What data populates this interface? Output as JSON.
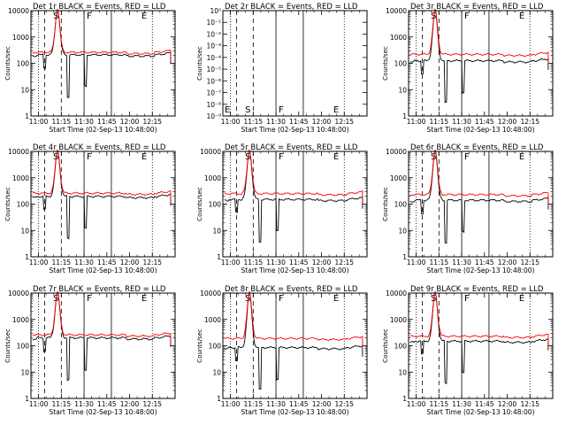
{
  "chart_data": {
    "type": "line",
    "xlabel": "Start Time (02-Sep-13 10:48:00)",
    "ylabel": "Counts/sec",
    "y_scale": "log",
    "x_tick_labels": [
      "11:00",
      "11:15",
      "11:30",
      "11:45",
      "12:00",
      "12:15"
    ],
    "x_range_min": [
      -5,
      90
    ],
    "y_tick_labels": [
      "1",
      "10",
      "100",
      "1000",
      "10000"
    ],
    "ylim": [
      1,
      10000
    ],
    "markers": [
      {
        "label": "S",
        "x_min": 12
      },
      {
        "label": "F",
        "x_min": 30
      },
      {
        "label": "E",
        "x_min": 66
      }
    ],
    "lines": {
      "solid_x_min": [
        30,
        48
      ],
      "dashed_x_min": [
        4,
        15
      ],
      "dotted_x_min": [
        0,
        75
      ]
    },
    "series_colors": {
      "events": "#000000",
      "lld": "#ff0000"
    },
    "panels": [
      {
        "title": "Det 1r  BLACK = Events, RED = LLD",
        "has_data": true,
        "events_level": 210,
        "lld_level": 260,
        "flare_peak": 11000
      },
      {
        "title": "Det 2r  BLACK = Events, RED = LLD",
        "has_data": false,
        "y_tick_labels": [
          "10⁻⁹",
          "10⁻⁸",
          "10⁻⁷",
          "10⁻⁶",
          "10⁻⁵",
          "10⁻⁴",
          "10⁻³",
          "10⁻²",
          "10⁻¹",
          "10⁰"
        ]
      },
      {
        "title": "Det 3r  BLACK = Events, RED = LLD",
        "has_data": true,
        "events_level": 125,
        "lld_level": 220,
        "flare_peak": 11000
      },
      {
        "title": "Det 4r  BLACK = Events, RED = LLD",
        "has_data": true,
        "events_level": 195,
        "lld_level": 260,
        "flare_peak": 11000
      },
      {
        "title": "Det 5r  BLACK = Events, RED = LLD",
        "has_data": true,
        "events_level": 150,
        "lld_level": 250,
        "flare_peak": 11000
      },
      {
        "title": "Det 6r  BLACK = Events, RED = LLD",
        "has_data": true,
        "events_level": 140,
        "lld_level": 230,
        "flare_peak": 11000
      },
      {
        "title": "Det 7r  BLACK = Events, RED = LLD",
        "has_data": true,
        "events_level": 200,
        "lld_level": 260,
        "flare_peak": 11000
      },
      {
        "title": "Det 8r  BLACK = Events, RED = LLD",
        "has_data": true,
        "events_level": 85,
        "lld_level": 190,
        "flare_peak": 11000
      },
      {
        "title": "Det 9r  BLACK = Events, RED = LLD",
        "has_data": true,
        "events_level": 150,
        "lld_level": 230,
        "flare_peak": 11000
      }
    ]
  }
}
